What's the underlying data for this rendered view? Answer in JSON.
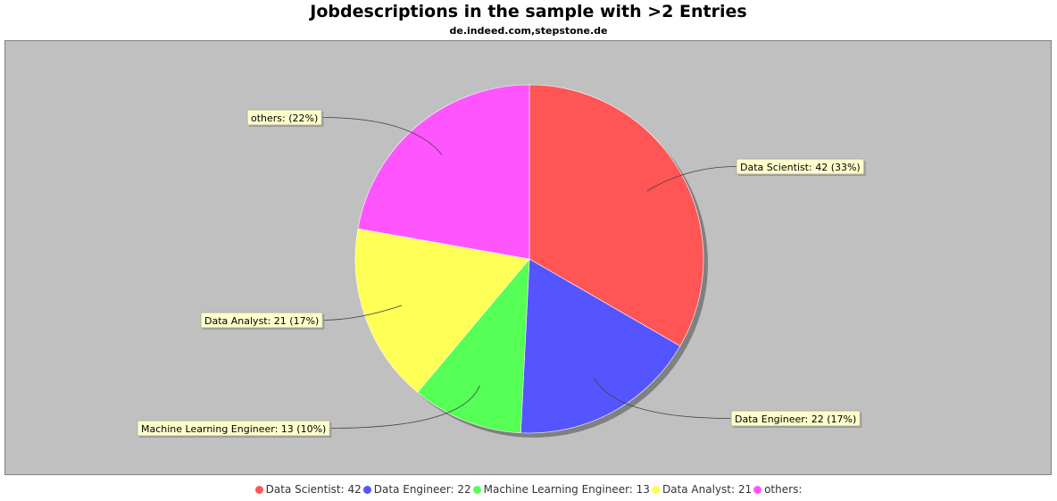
{
  "chart_data": {
    "type": "pie",
    "title": "Jobdescriptions in the sample with >2 Entries",
    "subtitle": "de.indeed.com,stepstone.de",
    "slices": [
      {
        "name": "Data Scientist",
        "value": 42,
        "label": "Data Scientist: 42 (33%)",
        "legend": "Data Scientist: 42",
        "color": "#ff5555"
      },
      {
        "name": "Data Engineer",
        "value": 22,
        "label": "Data Engineer: 22 (17%)",
        "legend": "Data Engineer: 22",
        "color": "#5555ff"
      },
      {
        "name": "Machine Learning Engineer",
        "value": 13,
        "label": "Machine Learning Engineer: 13 (10%)",
        "legend": "Machine Learning Engineer: 13",
        "color": "#55ff55"
      },
      {
        "name": "Data Analyst",
        "value": 21,
        "label": "Data Analyst: 21 (17%)",
        "legend": "Data Analyst: 21",
        "color": "#ffff55"
      },
      {
        "name": "others",
        "value": 28,
        "label": "others:  (22%)",
        "legend": "others:",
        "color": "#ff55ff"
      }
    ],
    "legend_position": "bottom"
  },
  "colors": {
    "plot_background": "#c0c0c0",
    "label_background": "#ffffcc"
  }
}
